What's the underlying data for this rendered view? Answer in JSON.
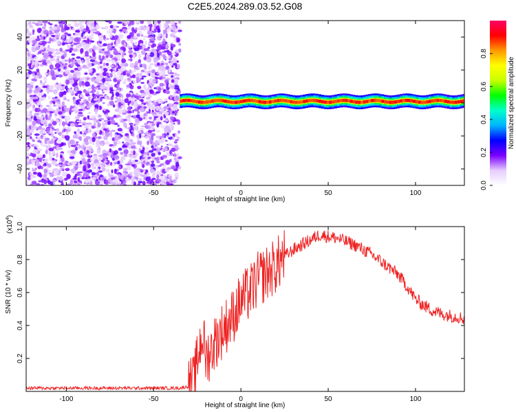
{
  "title": "C2E5.2024.289.03.52.G08",
  "chart_data": [
    {
      "type": "heatmap",
      "xlabel": "Height of straight line (km)",
      "ylabel": "Frequency (Hz)",
      "xlim": [
        -123,
        128
      ],
      "ylim": [
        -50,
        50
      ],
      "xticks": [
        -100,
        -50,
        0,
        50,
        100
      ],
      "yticks": [
        -40,
        -20,
        0,
        20,
        40
      ],
      "colorbar": {
        "label": "Normalized spectral amplitude",
        "range": [
          0,
          1
        ],
        "ticks": [
          "0.0",
          "0.2",
          "0.4",
          "0.6",
          "0.8"
        ],
        "colors": [
          "#ffffff",
          "#e6ccff",
          "#7a00ff",
          "#0000ff",
          "#00b4ff",
          "#00ffcc",
          "#00ff00",
          "#c8ff00",
          "#ffff00",
          "#ff9900",
          "#ff0000",
          "#ff0066"
        ]
      },
      "features": {
        "noise_region_x": [
          -123,
          -35
        ],
        "signal_band_x": [
          -35,
          128
        ],
        "signal_band_center_hz": 1
      }
    },
    {
      "type": "line",
      "xlabel": "Height of straight line (km)",
      "ylabel": "SNR (10 * v/v)",
      "yscale_label": "(x10",
      "yscale_exp": "4",
      "xlim": [
        -123,
        128
      ],
      "ylim": [
        0,
        1.0
      ],
      "xticks": [
        -100,
        -50,
        0,
        50,
        100
      ],
      "yticks": [
        0.2,
        0.4,
        0.6,
        0.8,
        1.0
      ],
      "series": [
        {
          "color": "#ee2222",
          "x": [
            -123,
            -100,
            -75,
            -50,
            -35,
            -30,
            -27,
            -24,
            -22,
            -20,
            -17,
            -15,
            -10,
            -5,
            0,
            5,
            10,
            15,
            20,
            25,
            30,
            35,
            40,
            45,
            50,
            55,
            60,
            65,
            70,
            75,
            80,
            85,
            90,
            95,
            100,
            105,
            110,
            115,
            120,
            125,
            128
          ],
          "values": [
            0.02,
            0.02,
            0.02,
            0.02,
            0.02,
            0.03,
            0.05,
            0.25,
            0.35,
            0.2,
            0.25,
            0.3,
            0.38,
            0.45,
            0.55,
            0.6,
            0.68,
            0.72,
            0.76,
            0.82,
            0.86,
            0.89,
            0.92,
            0.95,
            0.94,
            0.93,
            0.91,
            0.89,
            0.86,
            0.83,
            0.79,
            0.75,
            0.71,
            0.64,
            0.56,
            0.52,
            0.49,
            0.47,
            0.46,
            0.45,
            0.44
          ]
        }
      ]
    }
  ]
}
